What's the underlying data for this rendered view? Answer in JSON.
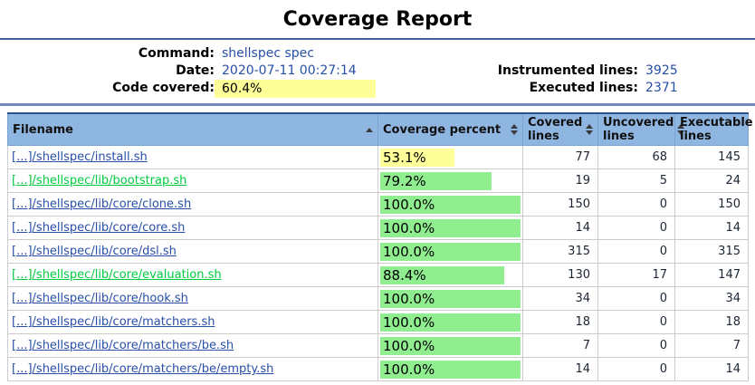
{
  "page": {
    "title": "Coverage Report"
  },
  "summary": {
    "command_label": "Command:",
    "command_value": "shellspec spec",
    "date_label": "Date:",
    "date_value": "2020-07-11 00:27:14",
    "covered_label": "Code covered:",
    "covered_value": "60.4%",
    "instrumented_label": "Instrumented lines:",
    "instrumented_value": "3925",
    "executed_label": "Executed lines:",
    "executed_value": "2371"
  },
  "table": {
    "columns": [
      {
        "label": "Filename",
        "sort": "asc"
      },
      {
        "label": "Coverage percent",
        "sort": "both"
      },
      {
        "label": "Covered lines",
        "sort": "both"
      },
      {
        "label": "Uncovered lines",
        "sort": "both"
      },
      {
        "label": "Executable lines",
        "sort": "both"
      }
    ],
    "rows": [
      {
        "filename": "[...]/shellspec/install.sh",
        "link_state": "unvisited",
        "percent": "53.1%",
        "percent_value": 53.1,
        "bar_color": "#FFFF99",
        "covered": "77",
        "uncovered": "68",
        "executable": "145"
      },
      {
        "filename": "[...]/shellspec/lib/bootstrap.sh",
        "link_state": "visited",
        "percent": "79.2%",
        "percent_value": 79.2,
        "bar_color": "#90EE90",
        "covered": "19",
        "uncovered": "5",
        "executable": "24"
      },
      {
        "filename": "[...]/shellspec/lib/core/clone.sh",
        "link_state": "unvisited",
        "percent": "100.0%",
        "percent_value": 100.0,
        "bar_color": "#90EE90",
        "covered": "150",
        "uncovered": "0",
        "executable": "150"
      },
      {
        "filename": "[...]/shellspec/lib/core/core.sh",
        "link_state": "unvisited",
        "percent": "100.0%",
        "percent_value": 100.0,
        "bar_color": "#90EE90",
        "covered": "14",
        "uncovered": "0",
        "executable": "14"
      },
      {
        "filename": "[...]/shellspec/lib/core/dsl.sh",
        "link_state": "unvisited",
        "percent": "100.0%",
        "percent_value": 100.0,
        "bar_color": "#90EE90",
        "covered": "315",
        "uncovered": "0",
        "executable": "315"
      },
      {
        "filename": "[...]/shellspec/lib/core/evaluation.sh",
        "link_state": "visited",
        "percent": "88.4%",
        "percent_value": 88.4,
        "bar_color": "#90EE90",
        "covered": "130",
        "uncovered": "17",
        "executable": "147"
      },
      {
        "filename": "[...]/shellspec/lib/core/hook.sh",
        "link_state": "unvisited",
        "percent": "100.0%",
        "percent_value": 100.0,
        "bar_color": "#90EE90",
        "covered": "34",
        "uncovered": "0",
        "executable": "34"
      },
      {
        "filename": "[...]/shellspec/lib/core/matchers.sh",
        "link_state": "unvisited",
        "percent": "100.0%",
        "percent_value": 100.0,
        "bar_color": "#90EE90",
        "covered": "18",
        "uncovered": "0",
        "executable": "18"
      },
      {
        "filename": "[...]/shellspec/lib/core/matchers/be.sh",
        "link_state": "unvisited",
        "percent": "100.0%",
        "percent_value": 100.0,
        "bar_color": "#90EE90",
        "covered": "7",
        "uncovered": "0",
        "executable": "7"
      },
      {
        "filename": "[...]/shellspec/lib/core/matchers/be/empty.sh",
        "link_state": "unvisited",
        "percent": "100.0%",
        "percent_value": 100.0,
        "bar_color": "#90EE90",
        "covered": "14",
        "uncovered": "0",
        "executable": "14"
      }
    ]
  },
  "colors": {
    "link": "#284FA8",
    "visited_link": "#00CB40",
    "highlight_yellow": "#FFFF99",
    "bar_green": "#90EE90",
    "header_bg": "#8FB5E1",
    "rule_top": "#44619E",
    "rule_bottom": "#7388BE"
  }
}
